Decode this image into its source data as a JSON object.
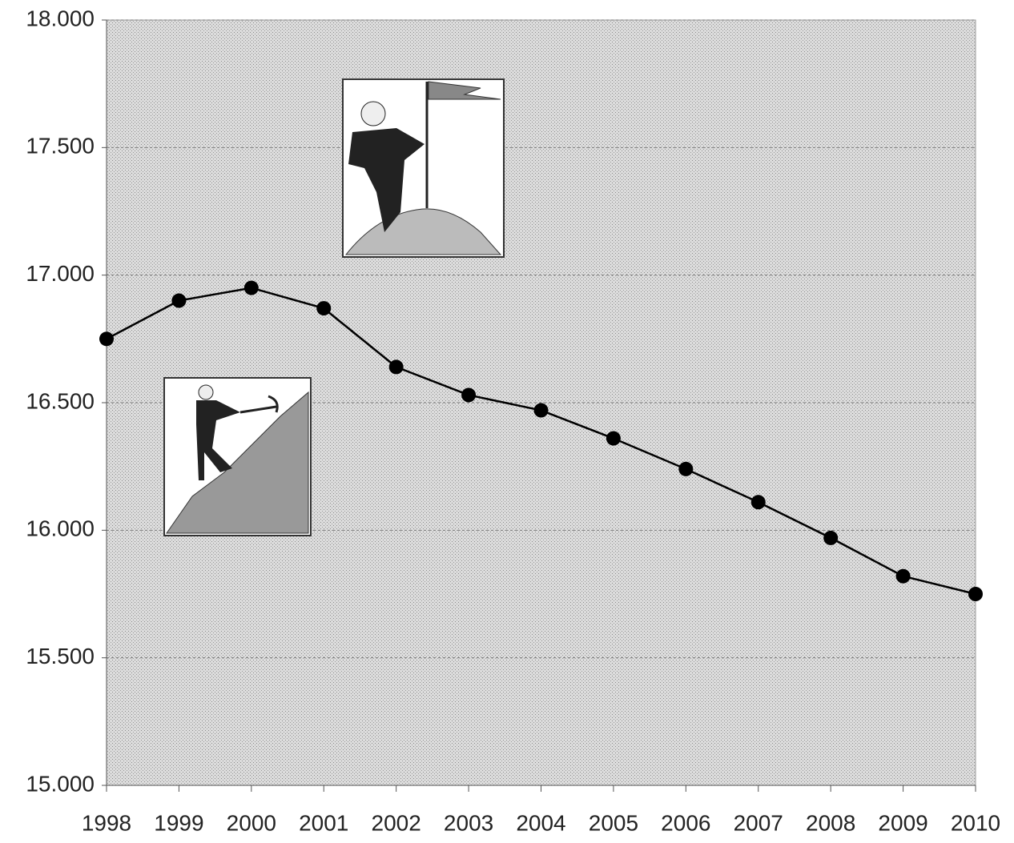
{
  "chart_data": {
    "type": "line",
    "categories": [
      "1998",
      "1999",
      "2000",
      "2001",
      "2002",
      "2003",
      "2004",
      "2005",
      "2006",
      "2007",
      "2008",
      "2009",
      "2010"
    ],
    "series": [
      {
        "color": "#000000",
        "values": [
          16750,
          16900,
          16950,
          16870,
          16640,
          16530,
          16470,
          16360,
          16240,
          16110,
          15970,
          15820,
          15750
        ]
      }
    ],
    "ylim": [
      15000,
      18000
    ],
    "yticks": [
      {
        "value": 15000,
        "label": "15.000"
      },
      {
        "value": 15500,
        "label": "15.500"
      },
      {
        "value": 16000,
        "label": "16.000"
      },
      {
        "value": 16500,
        "label": "16.500"
      },
      {
        "value": 17000,
        "label": "17.000"
      },
      {
        "value": 17500,
        "label": "17.500"
      },
      {
        "value": 18000,
        "label": "18.000"
      }
    ],
    "grid": true
  }
}
